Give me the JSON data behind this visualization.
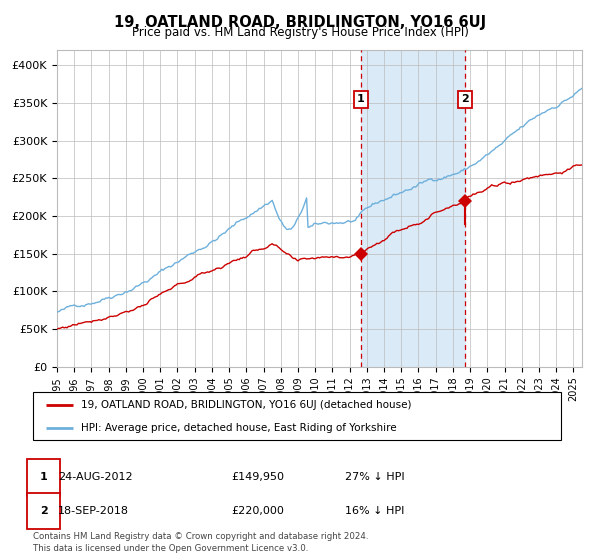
{
  "title": "19, OATLAND ROAD, BRIDLINGTON, YO16 6UJ",
  "subtitle": "Price paid vs. HM Land Registry's House Price Index (HPI)",
  "xlim_start": 1995.0,
  "xlim_end": 2025.5,
  "ylim": [
    0,
    420000
  ],
  "yticks": [
    0,
    50000,
    100000,
    150000,
    200000,
    250000,
    300000,
    350000,
    400000
  ],
  "ytick_labels": [
    "£0",
    "£50K",
    "£100K",
    "£150K",
    "£200K",
    "£250K",
    "£300K",
    "£350K",
    "£400K"
  ],
  "hpi_color": "#6eb0dc",
  "price_color": "#cc0000",
  "marker_color": "#cc0000",
  "dashed_line_color": "#cc0000",
  "shade_color": "#daeaf7",
  "transaction1_date": 2012.646,
  "transaction1_price": 149950,
  "transaction1_label": "1",
  "transaction2_date": 2018.715,
  "transaction2_price": 220000,
  "transaction2_label": "2",
  "legend_line1": "19, OATLAND ROAD, BRIDLINGTON, YO16 6UJ (detached house)",
  "legend_line2": "HPI: Average price, detached house, East Riding of Yorkshire",
  "table_row1_num": "1",
  "table_row1_date": "24-AUG-2012",
  "table_row1_price": "£149,950",
  "table_row1_hpi": "27% ↓ HPI",
  "table_row2_num": "2",
  "table_row2_date": "18-SEP-2018",
  "table_row2_price": "£220,000",
  "table_row2_hpi": "16% ↓ HPI",
  "footer": "Contains HM Land Registry data © Crown copyright and database right 2024.\nThis data is licensed under the Open Government Licence v3.0.",
  "background_color": "#ffffff",
  "grid_color": "#bbbbbb"
}
